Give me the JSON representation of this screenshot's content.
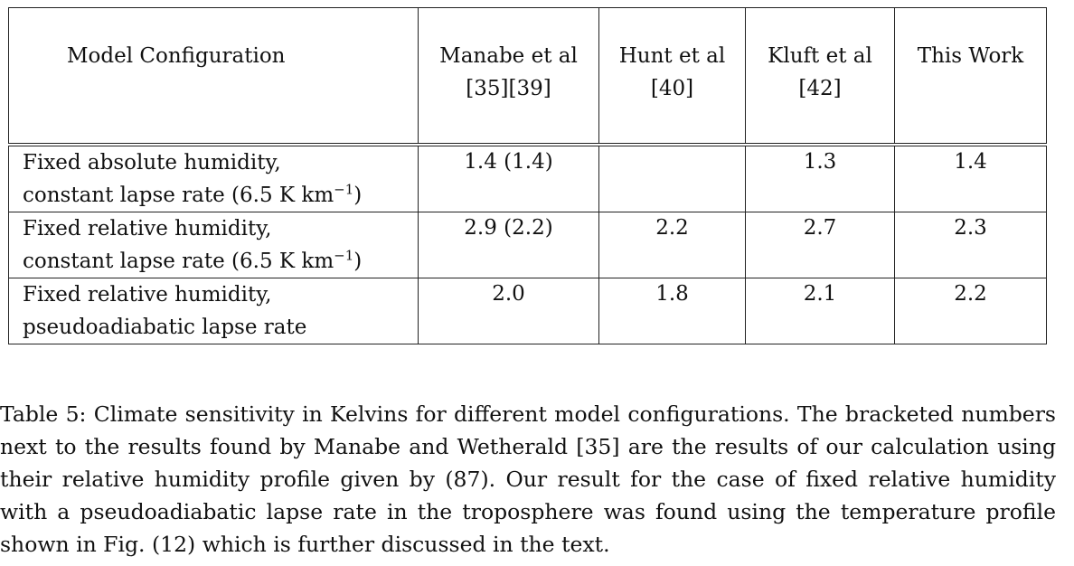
{
  "table": {
    "header": {
      "config": "Model Configuration",
      "refs": [
        {
          "line1": "Manabe et al",
          "line2": "[35][39]"
        },
        {
          "line1": "Hunt et al",
          "line2": "[40]"
        },
        {
          "line1": "Kluft et al",
          "line2": "[42]"
        },
        {
          "line1": "This Work",
          "line2": ""
        }
      ]
    },
    "rows": [
      {
        "line1": "Fixed absolute humidity,",
        "line2_text": "constant lapse rate (6.5 K km",
        "line2_sup": "−1",
        "line2_end": ")",
        "values": [
          "1.4 (1.4)",
          "",
          "1.3",
          "1.4"
        ]
      },
      {
        "line1": "Fixed relative humidity,",
        "line2_text": "constant lapse rate (6.5 K km",
        "line2_sup": "−1",
        "line2_end": ")",
        "values": [
          "2.9 (2.2)",
          "2.2",
          "2.7",
          "2.3"
        ]
      },
      {
        "line1": "Fixed relative humidity,",
        "line2_text": "pseudoadiabatic lapse rate",
        "line2_sup": "",
        "line2_end": "",
        "values": [
          "2.0",
          "1.8",
          "2.1",
          "2.2"
        ]
      }
    ]
  },
  "caption": "Table 5: Climate sensitivity in Kelvins for different model configurations. The bracketed numbers next to the results found by Manabe and Wetherald [35] are the results of our calculation using their relative humidity profile given by (87). Our result for the case of fixed relative humidity with a pseudoadiabatic lapse rate in the troposphere was found using the temperature profile shown in Fig. (12) which is further discussed in the text."
}
